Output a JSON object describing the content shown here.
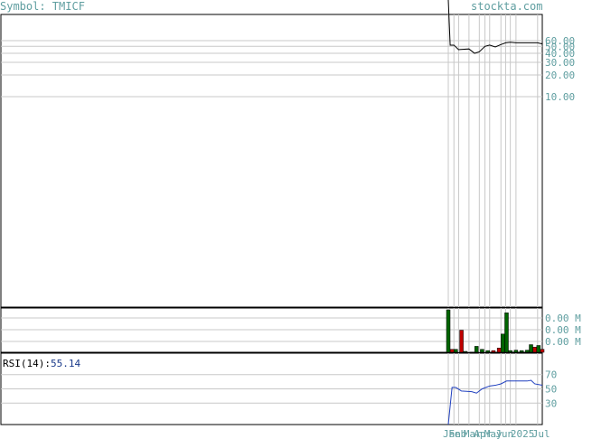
{
  "header": {
    "symbol_label": "Symbol: TMICF",
    "brand": "stockta.com"
  },
  "rsi": {
    "label": "RSI(14):",
    "value": "55.14"
  },
  "colors": {
    "accent": "#5f9ea0",
    "price_line": "#000000",
    "rsi_line": "#1f3fbf",
    "volume_up": "#006400",
    "volume_down": "#c00000",
    "grid": "#c8c8c8"
  },
  "chart_data": [
    {
      "type": "line",
      "name": "price",
      "y_ticks": [
        "60.00",
        "50.00",
        "40.00",
        "30.00",
        "20.00",
        "10.00"
      ],
      "y_tick_values": [
        60,
        50,
        40,
        30,
        20,
        10
      ],
      "scale": "log",
      "x_labels": [
        "Jan",
        "Feb",
        "Mar",
        "Apr",
        "May",
        "Jun",
        "2025",
        "Jul"
      ],
      "x_label_positions": [
        0.0,
        0.06,
        0.22,
        0.33,
        0.44,
        0.56,
        0.72,
        0.95
      ],
      "vertical_grid_positions": [
        0.0,
        0.06,
        0.11,
        0.22,
        0.33,
        0.39,
        0.44,
        0.56,
        0.61,
        0.66,
        0.72,
        0.95
      ],
      "points": [
        {
          "t": 0.0,
          "v": 2000
        },
        {
          "t": 0.02,
          "v": 52
        },
        {
          "t": 0.06,
          "v": 52
        },
        {
          "t": 0.11,
          "v": 45
        },
        {
          "t": 0.22,
          "v": 46
        },
        {
          "t": 0.28,
          "v": 40
        },
        {
          "t": 0.33,
          "v": 42
        },
        {
          "t": 0.39,
          "v": 50
        },
        {
          "t": 0.44,
          "v": 52
        },
        {
          "t": 0.5,
          "v": 49
        },
        {
          "t": 0.56,
          "v": 53
        },
        {
          "t": 0.61,
          "v": 56
        },
        {
          "t": 0.66,
          "v": 57
        },
        {
          "t": 0.72,
          "v": 56
        },
        {
          "t": 0.8,
          "v": 56
        },
        {
          "t": 0.95,
          "v": 56
        },
        {
          "t": 1.0,
          "v": 54
        }
      ]
    },
    {
      "type": "bar",
      "name": "volume",
      "y_ticks": [
        "0.00 M",
        "0.00 M",
        "0.00 M"
      ],
      "bars": [
        {
          "t": 0.0,
          "v": 1.0,
          "dir": "up"
        },
        {
          "t": 0.04,
          "v": 0.07,
          "dir": "down"
        },
        {
          "t": 0.08,
          "v": 0.07,
          "dir": "up"
        },
        {
          "t": 0.14,
          "v": 0.52,
          "dir": "down"
        },
        {
          "t": 0.18,
          "v": 0.02,
          "dir": "up"
        },
        {
          "t": 0.3,
          "v": 0.14,
          "dir": "up"
        },
        {
          "t": 0.36,
          "v": 0.07,
          "dir": "up"
        },
        {
          "t": 0.42,
          "v": 0.04,
          "dir": "up"
        },
        {
          "t": 0.48,
          "v": 0.04,
          "dir": "down"
        },
        {
          "t": 0.54,
          "v": 0.1,
          "dir": "down"
        },
        {
          "t": 0.58,
          "v": 0.43,
          "dir": "up"
        },
        {
          "t": 0.62,
          "v": 0.93,
          "dir": "up"
        },
        {
          "t": 0.66,
          "v": 0.04,
          "dir": "up"
        },
        {
          "t": 0.72,
          "v": 0.05,
          "dir": "up"
        },
        {
          "t": 0.78,
          "v": 0.04,
          "dir": "up"
        },
        {
          "t": 0.84,
          "v": 0.05,
          "dir": "up"
        },
        {
          "t": 0.88,
          "v": 0.18,
          "dir": "up"
        },
        {
          "t": 0.92,
          "v": 0.12,
          "dir": "down"
        },
        {
          "t": 0.96,
          "v": 0.16,
          "dir": "up"
        },
        {
          "t": 1.0,
          "v": 0.07,
          "dir": "down"
        }
      ]
    },
    {
      "type": "line",
      "name": "rsi",
      "y_ticks": [
        "70",
        "50",
        "30"
      ],
      "y_tick_values": [
        70,
        50,
        30
      ],
      "ylim": [
        0,
        100
      ],
      "points": [
        {
          "t": 0.0,
          "v": 0
        },
        {
          "t": 0.04,
          "v": 52
        },
        {
          "t": 0.08,
          "v": 52
        },
        {
          "t": 0.14,
          "v": 47
        },
        {
          "t": 0.25,
          "v": 46
        },
        {
          "t": 0.3,
          "v": 44
        },
        {
          "t": 0.36,
          "v": 50
        },
        {
          "t": 0.44,
          "v": 54
        },
        {
          "t": 0.5,
          "v": 55
        },
        {
          "t": 0.56,
          "v": 57
        },
        {
          "t": 0.62,
          "v": 61
        },
        {
          "t": 0.72,
          "v": 61
        },
        {
          "t": 0.84,
          "v": 61
        },
        {
          "t": 0.88,
          "v": 62
        },
        {
          "t": 0.92,
          "v": 57
        },
        {
          "t": 1.0,
          "v": 55
        }
      ]
    }
  ]
}
